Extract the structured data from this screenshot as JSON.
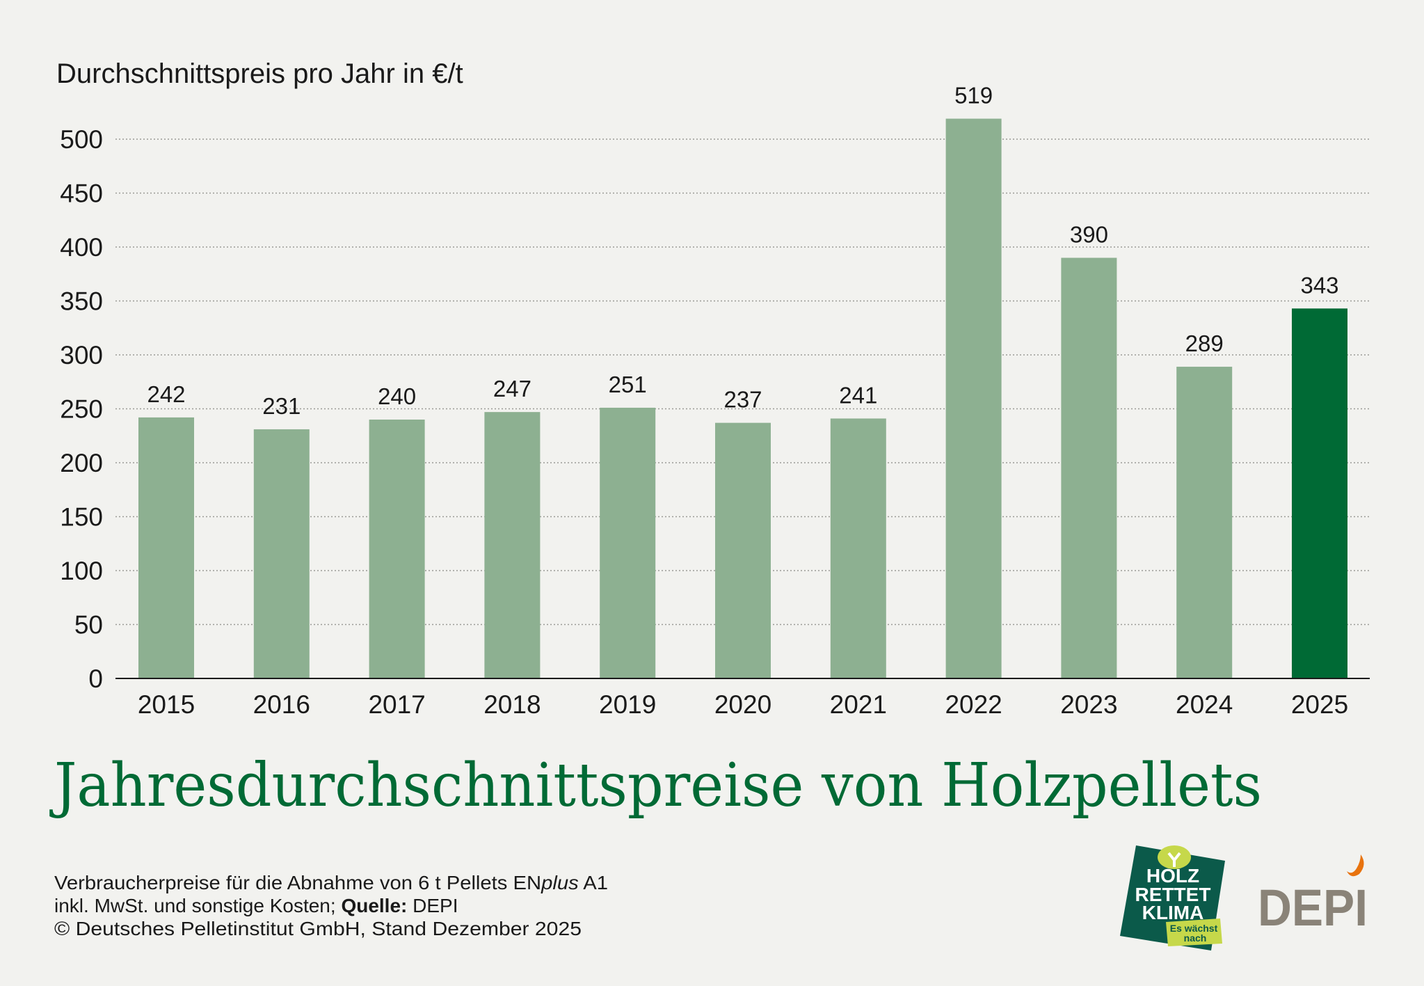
{
  "colors": {
    "background": "#f2f2ef",
    "bar": "#8db091",
    "bar_highlight": "#006a35",
    "title": "#006a35",
    "text": "#1a1a1a",
    "depi_gray": "#8a8378",
    "depi_flame": "#e8730e",
    "hrk_green": "#0b5a4a",
    "hrk_lime": "#c6d84a"
  },
  "chart_data": {
    "type": "bar",
    "title": "Jahresdurchschnittspreise von Holzpellets",
    "ylabel": "Durchschnittspreis pro Jahr in €/t",
    "xlabel": "",
    "categories": [
      "2015",
      "2016",
      "2017",
      "2018",
      "2019",
      "2020",
      "2021",
      "2022",
      "2023",
      "2024",
      "2025"
    ],
    "values": [
      242,
      231,
      240,
      247,
      251,
      237,
      241,
      519,
      390,
      289,
      343
    ],
    "data_labels": [
      "242",
      "231",
      "240",
      "247",
      "251",
      "237",
      "241",
      "519",
      "390",
      "289",
      "343"
    ],
    "highlight_category": "2025",
    "ylim": [
      0,
      500
    ],
    "yticks": [
      0,
      50,
      100,
      150,
      200,
      250,
      300,
      350,
      400,
      450,
      500
    ],
    "grid": true,
    "legend": "none"
  },
  "footnote": {
    "line1_prefix": "Verbraucherpreise für die Abnahme von 6 t Pellets EN",
    "line1_italic": "plus",
    "line1_suffix": " A1",
    "line2_prefix": "inkl. MwSt. und sonstige Kosten; ",
    "line2_bold": "Quelle:",
    "line2_suffix": " DEPI",
    "line3": "© Deutsches Pelletinstitut GmbH, Stand Dezember 2025"
  },
  "logos": {
    "holz_rettet_klima": [
      "HOLZ",
      "RETTET",
      "KLIMA"
    ],
    "holz_rettet_klima_tagline": [
      "Es wächst",
      "nach"
    ],
    "depi": "DEPI"
  }
}
